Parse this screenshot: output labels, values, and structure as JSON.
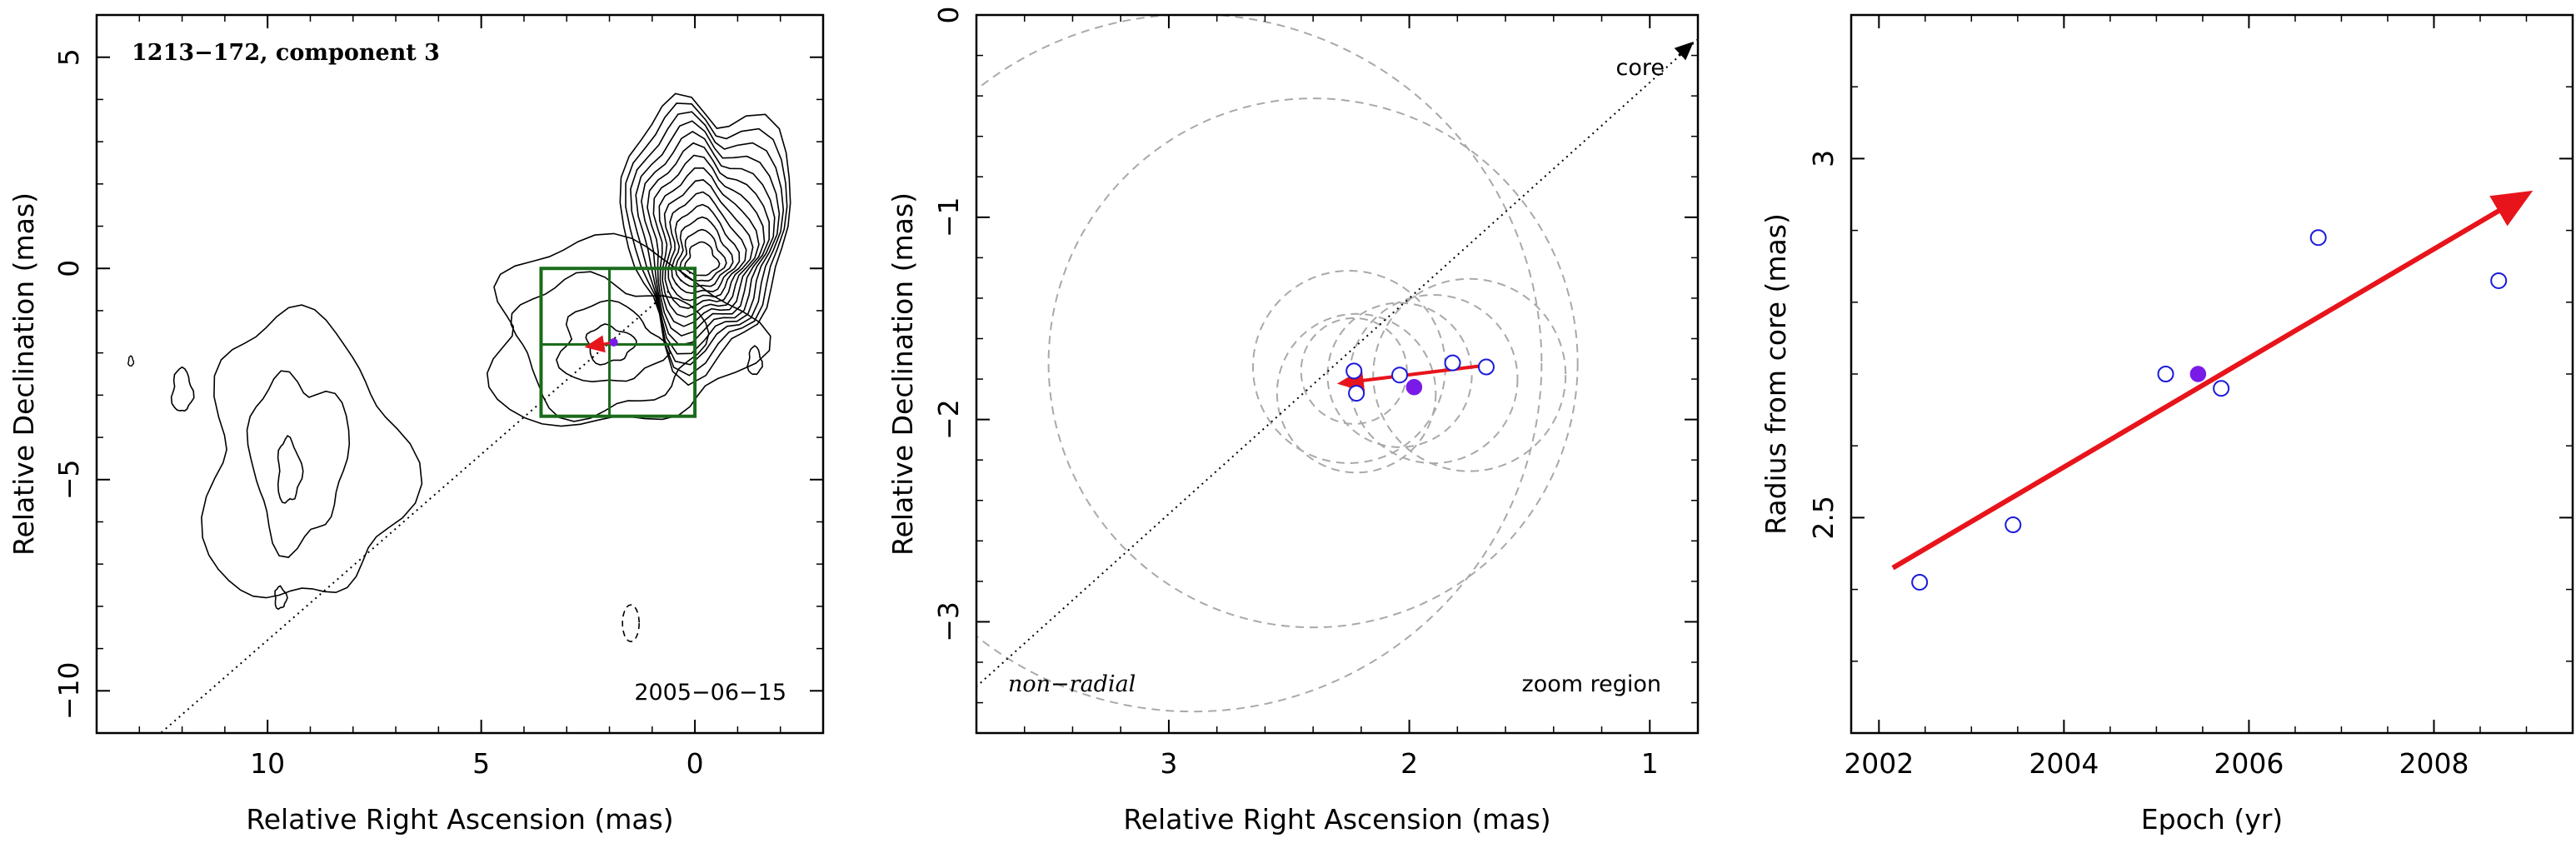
{
  "colors": {
    "frame": "#000000",
    "contour": "#000000",
    "zoom_box": "#1a6b1a",
    "motion_arrow": "#e8141b",
    "observed_epoch": "#1a1ad9",
    "reference_epoch": "#7a1ae8",
    "beam_circle": "#a9a9a9"
  },
  "chart_data": [
    {
      "type": "contour",
      "panel": "left",
      "title": "",
      "xlabel": "Relative Right Ascension (mas)",
      "ylabel": "Relative Declination (mas)",
      "xlim": [
        14,
        -3
      ],
      "ylim": [
        -11,
        6
      ],
      "x_ticks": [
        10,
        5,
        0
      ],
      "y_ticks": [
        5,
        0,
        -5,
        -10
      ],
      "x_tick_labels": [
        "10",
        "5",
        "0"
      ],
      "y_tick_labels": [
        "5",
        "0",
        "−5",
        "−10"
      ],
      "annotations": {
        "source": "1213−172, component 3",
        "date": "2005−06−15"
      },
      "zoom_region": {
        "x": [
          3.6,
          0.0
        ],
        "y": [
          -3.5,
          0.0
        ],
        "center": [
          2.0,
          -1.8
        ]
      },
      "radial_line": {
        "from": [
          0,
          0
        ],
        "to": [
          12.5,
          -11
        ]
      },
      "motion_vector": {
        "from": [
          1.9,
          -1.75
        ],
        "to": [
          2.5,
          -1.85
        ]
      },
      "peak": [
        0.0,
        0.0
      ]
    },
    {
      "type": "scatter",
      "panel": "middle",
      "title": "",
      "xlabel": "Relative Right Ascension (mas)",
      "ylabel": "Relative Declination (mas)",
      "xlim": [
        3.8,
        0.8
      ],
      "ylim": [
        -3.55,
        0
      ],
      "x_ticks": [
        3,
        2,
        1
      ],
      "y_ticks": [
        0,
        -1,
        -2,
        -3
      ],
      "x_tick_labels": [
        "3",
        "2",
        "1"
      ],
      "y_tick_labels": [
        "0",
        "−1",
        "−2",
        "−3"
      ],
      "annotations": {
        "motion_type": "non−radial",
        "region": "zoom region",
        "core": "core"
      },
      "points": [
        {
          "x": 2.23,
          "y": -1.76,
          "kind": "observed"
        },
        {
          "x": 2.22,
          "y": -1.87,
          "kind": "observed"
        },
        {
          "x": 2.04,
          "y": -1.78,
          "kind": "observed"
        },
        {
          "x": 1.82,
          "y": -1.72,
          "kind": "observed"
        },
        {
          "x": 1.68,
          "y": -1.74,
          "kind": "observed"
        },
        {
          "x": 1.98,
          "y": -1.84,
          "kind": "reference"
        }
      ],
      "beam_circles": [
        {
          "x": 2.23,
          "y": -1.76,
          "r": 0.22
        },
        {
          "x": 2.04,
          "y": -1.78,
          "r": 0.3
        },
        {
          "x": 2.22,
          "y": -1.87,
          "r": 0.33
        },
        {
          "x": 1.9,
          "y": -1.8,
          "r": 0.35
        },
        {
          "x": 1.75,
          "y": -1.78,
          "r": 0.4
        },
        {
          "x": 2.25,
          "y": -1.74,
          "r": 0.4
        },
        {
          "x": 2.4,
          "y": -1.72,
          "r": 1.1
        },
        {
          "x": 2.9,
          "y": -1.72,
          "r": 1.45
        }
      ],
      "radial_line": {
        "from": [
          0.8,
          -0.12
        ],
        "to": [
          3.8,
          -3.32
        ]
      },
      "motion_vector": {
        "from": [
          1.67,
          -1.73
        ],
        "to": [
          2.28,
          -1.82
        ]
      }
    },
    {
      "type": "scatter",
      "panel": "right",
      "title": "",
      "xlabel": "Epoch (yr)",
      "ylabel": "Radius from core (mas)",
      "xlim": [
        2001.7,
        2009.5
      ],
      "ylim": [
        2.2,
        3.2
      ],
      "x_ticks": [
        2002,
        2004,
        2006,
        2008
      ],
      "y_ticks": [
        2.5,
        3
      ],
      "x_tick_labels": [
        "2002",
        "2004",
        "2006",
        "2008"
      ],
      "y_tick_labels": [
        "2.5",
        "3"
      ],
      "points": [
        {
          "x": 2002.44,
          "y": 2.41,
          "kind": "observed"
        },
        {
          "x": 2003.45,
          "y": 2.49,
          "kind": "observed"
        },
        {
          "x": 2005.1,
          "y": 2.7,
          "kind": "observed"
        },
        {
          "x": 2005.45,
          "y": 2.7,
          "kind": "reference"
        },
        {
          "x": 2005.7,
          "y": 2.68,
          "kind": "observed"
        },
        {
          "x": 2006.75,
          "y": 2.89,
          "kind": "observed"
        },
        {
          "x": 2008.7,
          "y": 2.83,
          "kind": "observed"
        }
      ],
      "fit_line": {
        "from": [
          2002.15,
          2.43
        ],
        "to": [
          2009.0,
          2.95
        ]
      }
    }
  ]
}
